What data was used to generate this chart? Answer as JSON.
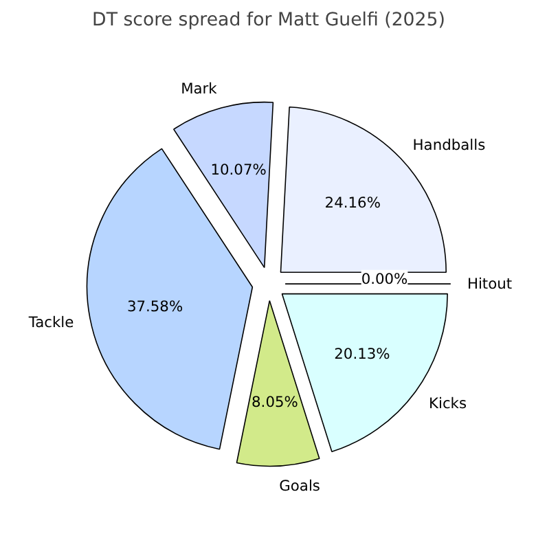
{
  "chart_data": {
    "type": "pie",
    "title": "DT score spread for Matt Guelfi (2025)",
    "categories": [
      "Handballs",
      "Mark",
      "Tackle",
      "Goals",
      "Kicks",
      "Hitout"
    ],
    "values": [
      24.16,
      10.07,
      37.58,
      8.05,
      20.13,
      0.0
    ],
    "value_labels": [
      "24.16%",
      "10.07%",
      "37.58%",
      "8.05%",
      "20.13%",
      "0.00%"
    ],
    "colors": [
      "#eaf0ff",
      "#c6d8ff",
      "#b7d5ff",
      "#d2ea8a",
      "#d9ffff",
      "#e6f5ff"
    ]
  }
}
